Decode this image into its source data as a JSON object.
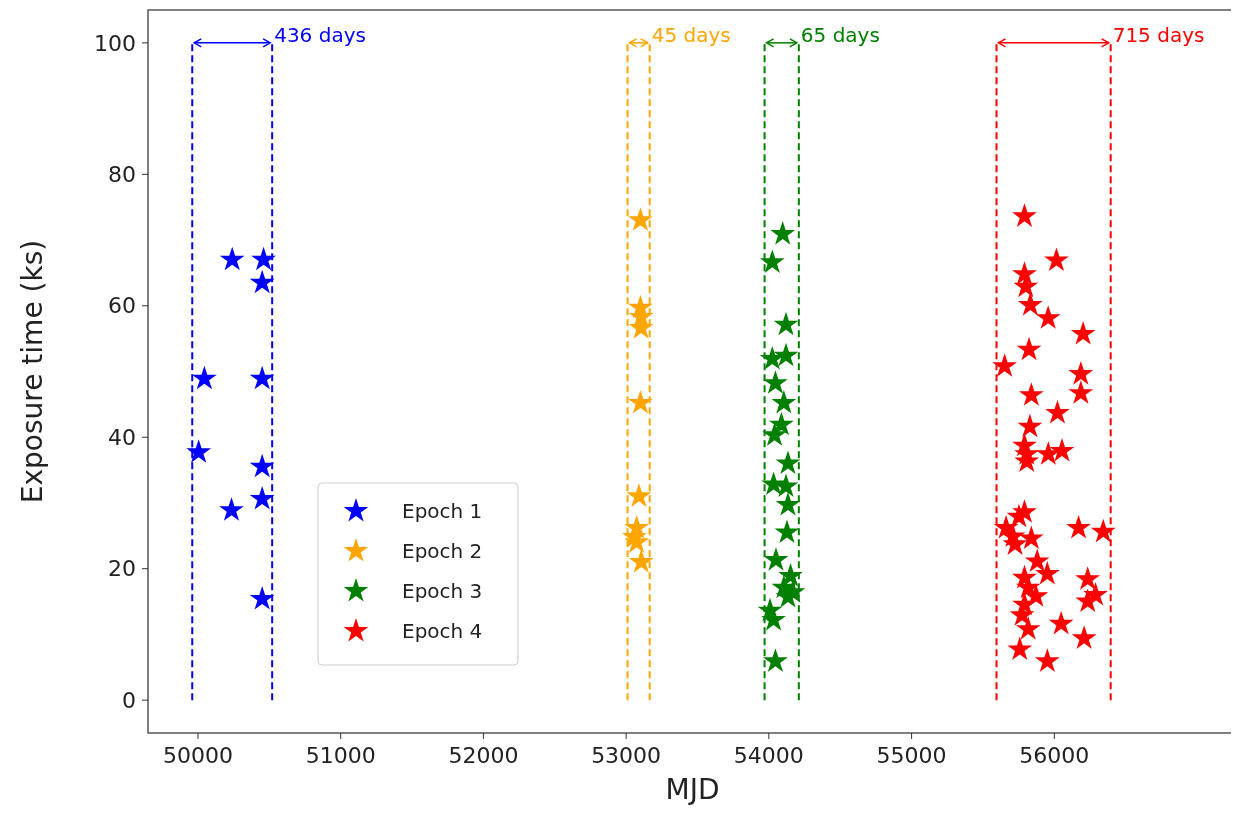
{
  "chart_data": {
    "type": "scatter",
    "xlabel": "MJD",
    "ylabel": "Exposure time (ks)",
    "xlim": [
      49650,
      57280
    ],
    "ylim": [
      -5,
      105
    ],
    "xticks": [
      50000,
      51000,
      52000,
      53000,
      54000,
      55000,
      56000
    ],
    "yticks": [
      0,
      20,
      40,
      60,
      80,
      100
    ],
    "grid": false,
    "legend": "bottom left",
    "marker": "star",
    "series": [
      {
        "name": "Epoch 1",
        "color": "#0000ff",
        "x": [
          50240,
          50460,
          50450,
          50045,
          50450,
          50005,
          50450,
          50450,
          50235,
          50450
        ],
        "values": [
          67,
          67,
          63.5,
          48.9,
          48.9,
          37.7,
          35.5,
          30.6,
          28.9,
          15.4
        ]
      },
      {
        "name": "Epoch 2",
        "color": "#ffa500",
        "x": [
          53100,
          53100,
          53105,
          53105,
          53100,
          53090,
          53074,
          53058,
          53074,
          53106
        ],
        "values": [
          73,
          59.7,
          58.3,
          56.6,
          45.2,
          31,
          26.2,
          24.8,
          24,
          21
        ]
      },
      {
        "name": "Epoch 3",
        "color": "#008000",
        "x": [
          54097,
          54024,
          54120,
          54024,
          54120,
          54046,
          54105,
          54088,
          54040,
          54134,
          54033,
          54120,
          54134,
          54127,
          54050,
          54152,
          54105,
          54134,
          54168,
          54008,
          54033,
          54046
        ],
        "values": [
          70.9,
          66.6,
          57.1,
          51.9,
          52.4,
          48.2,
          45.2,
          41.9,
          40.3,
          36,
          32.8,
          32.5,
          29.7,
          25.5,
          21.3,
          18.9,
          17.1,
          15.7,
          16.4,
          13.6,
          12.2,
          5.9
        ]
      },
      {
        "name": "Epoch 4",
        "color": "#ff0000",
        "x": [
          55791,
          56015,
          55791,
          55800,
          55832,
          55957,
          56202,
          55823,
          55652,
          56186,
          56186,
          55839,
          56022,
          55829,
          55791,
          55807,
          55958,
          56054,
          55807,
          55791,
          55752,
          55662,
          56170,
          56343,
          55710,
          55839,
          55725,
          55880,
          55951,
          55791,
          56234,
          55817,
          55871,
          56289,
          56234,
          55791,
          55774,
          55817,
          56048,
          56209,
          55758,
          55951
        ],
        "values": [
          73.6,
          66.9,
          64.8,
          62.9,
          60.1,
          58.1,
          55.7,
          53.3,
          50.8,
          49.6,
          46.7,
          46.4,
          43.7,
          41.6,
          38.7,
          37.4,
          37.4,
          37.9,
          36.3,
          28.6,
          27.9,
          26.2,
          26.2,
          25.6,
          24.9,
          24.6,
          23.7,
          21.1,
          19.2,
          18.6,
          18.4,
          17.1,
          15.8,
          16,
          15,
          14.5,
          12.9,
          10.8,
          11.6,
          9.4,
          7.7,
          5.9
        ]
      }
    ],
    "ref_lines": [
      {
        "axis": "x",
        "value": 49960,
        "color": "#0000ff",
        "line_style": "dashed"
      },
      {
        "axis": "x",
        "value": 50520,
        "color": "#0000ff",
        "line_style": "dashed"
      },
      {
        "axis": "x",
        "value": 53010,
        "color": "#ffa500",
        "line_style": "dashed"
      },
      {
        "axis": "x",
        "value": 53165,
        "color": "#ffa500",
        "line_style": "dashed"
      },
      {
        "axis": "x",
        "value": 53970,
        "color": "#008000",
        "line_style": "dashed"
      },
      {
        "axis": "x",
        "value": 54210,
        "color": "#008000",
        "line_style": "dashed"
      },
      {
        "axis": "x",
        "value": 55595,
        "color": "#ff0000",
        "line_style": "dashed"
      },
      {
        "axis": "x",
        "value": 56395,
        "color": "#ff0000",
        "line_style": "dashed"
      }
    ],
    "annotations": [
      {
        "text": "436 days",
        "x": 50520,
        "y": 100
      },
      {
        "text": "45 days",
        "x": 53165,
        "y": 100
      },
      {
        "text": "65 days",
        "x": 54210,
        "y": 100
      },
      {
        "text": "715 days",
        "x": 56395,
        "y": 100
      }
    ]
  }
}
